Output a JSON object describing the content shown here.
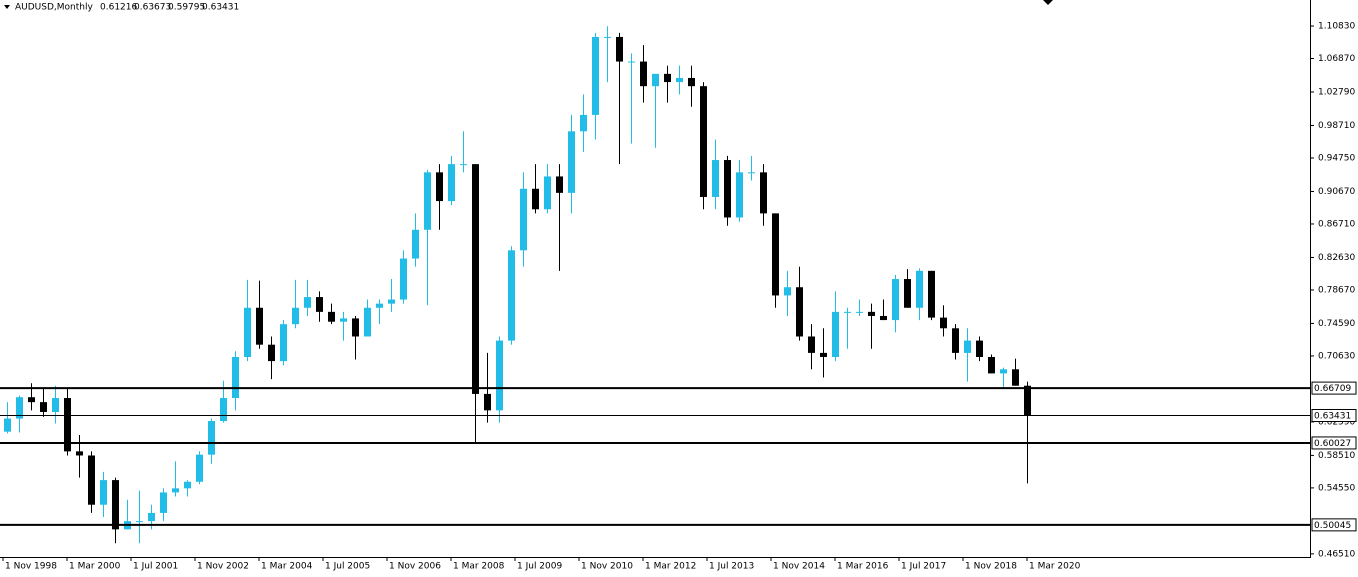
{
  "chart_data": {
    "type": "candlestick",
    "title": "AUDUSD,Monthly",
    "header_values": [
      0.61216,
      0.63673,
      0.59795
    ],
    "up_color": "#22bde6",
    "down_color": "#000000",
    "ylim": [
      0.4613,
      1.14
    ],
    "yticks": [
      {
        "value": 1.1083,
        "label": "1.10830"
      },
      {
        "value": 1.0687,
        "label": "1.06870"
      },
      {
        "value": 1.0279,
        "label": "1.02790"
      },
      {
        "value": 0.9871,
        "label": "0.98710"
      },
      {
        "value": 0.9475,
        "label": "0.94750"
      },
      {
        "value": 0.9067,
        "label": "0.90670"
      },
      {
        "value": 0.8671,
        "label": "0.86710"
      },
      {
        "value": 0.8263,
        "label": "0.82630"
      },
      {
        "value": 0.7867,
        "label": "0.78670"
      },
      {
        "value": 0.7459,
        "label": "0.74590"
      },
      {
        "value": 0.7063,
        "label": "0.70630"
      },
      {
        "value": 0.6259,
        "label": "0.62590"
      },
      {
        "value": 0.5851,
        "label": "0.58510"
      },
      {
        "value": 0.5455,
        "label": "0.54550"
      },
      {
        "value": 0.4651,
        "label": "0.46510"
      }
    ],
    "levels": [
      0.66709,
      0.60027,
      0.50045
    ],
    "x_labels": [
      "1 Nov 1998",
      "1 Mar 2000",
      "1 Jul 2001",
      "1 Nov 2002",
      "1 Mar 2004",
      "1 Jul 2005",
      "1 Nov 2006",
      "1 Mar 2008",
      "1 Jul 2009",
      "1 Nov 2010",
      "1 Mar 2012",
      "1 Jul 2013",
      "1 Nov 2014",
      "1 Mar 2016",
      "1 Jul 2017",
      "1 Nov 2018",
      "1 Mar 2020"
    ],
    "open": [
      0.614,
      0.63,
      0.656,
      0.65,
      0.638,
      0.655,
      0.59,
      0.585,
      0.525,
      0.555,
      0.495,
      0.505,
      0.505,
      0.515,
      0.54,
      0.545,
      0.553,
      0.586,
      0.627,
      0.655,
      0.705,
      0.765,
      0.72,
      0.7,
      0.745,
      0.765,
      0.778,
      0.76,
      0.748,
      0.752,
      0.73,
      0.765,
      0.77,
      0.775,
      0.825,
      0.86,
      0.93,
      0.895,
      0.94,
      0.94,
      0.66,
      0.64,
      0.725,
      0.835,
      0.91,
      0.885,
      0.925,
      0.905,
      0.98,
      1.0,
      1.095,
      1.095,
      1.065,
      1.065,
      1.035,
      1.05,
      1.04,
      1.045,
      1.035,
      0.9,
      0.945,
      0.875,
      0.93,
      0.93,
      0.88,
      0.78,
      0.79,
      0.73,
      0.71,
      0.705,
      0.76,
      0.76,
      0.76,
      0.755,
      0.75,
      0.8,
      0.765,
      0.81,
      0.753,
      0.74,
      0.71,
      0.725,
      0.705,
      0.685,
      0.69,
      0.67
    ],
    "high": [
      0.65,
      0.658,
      0.673,
      0.666,
      0.67,
      0.668,
      0.61,
      0.59,
      0.565,
      0.558,
      0.531,
      0.542,
      0.525,
      0.545,
      0.578,
      0.555,
      0.59,
      0.63,
      0.676,
      0.712,
      0.799,
      0.798,
      0.73,
      0.75,
      0.799,
      0.799,
      0.785,
      0.77,
      0.76,
      0.755,
      0.775,
      0.775,
      0.8,
      0.835,
      0.88,
      0.933,
      0.94,
      0.95,
      0.98,
      0.94,
      0.71,
      0.73,
      0.84,
      0.93,
      0.94,
      0.94,
      0.94,
      1.0,
      1.025,
      1.1,
      1.108,
      1.1,
      1.075,
      1.085,
      1.05,
      1.06,
      1.06,
      1.06,
      1.04,
      0.97,
      0.95,
      0.945,
      0.95,
      0.94,
      0.88,
      0.81,
      0.815,
      0.745,
      0.74,
      0.785,
      0.765,
      0.775,
      0.77,
      0.775,
      0.805,
      0.812,
      0.813,
      0.81,
      0.768,
      0.745,
      0.74,
      0.73,
      0.708,
      0.692,
      0.703,
      0.675
    ],
    "low": [
      0.612,
      0.613,
      0.64,
      0.632,
      0.624,
      0.585,
      0.558,
      0.515,
      0.51,
      0.478,
      0.495,
      0.478,
      0.495,
      0.505,
      0.535,
      0.535,
      0.55,
      0.575,
      0.625,
      0.64,
      0.7,
      0.715,
      0.678,
      0.695,
      0.74,
      0.755,
      0.748,
      0.745,
      0.725,
      0.702,
      0.73,
      0.745,
      0.76,
      0.77,
      0.815,
      0.768,
      0.86,
      0.89,
      0.93,
      0.6,
      0.625,
      0.625,
      0.72,
      0.815,
      0.88,
      0.88,
      0.81,
      0.88,
      0.955,
      0.97,
      1.04,
      0.94,
      0.965,
      1.015,
      0.96,
      1.015,
      1.025,
      1.01,
      0.885,
      0.885,
      0.865,
      0.87,
      0.92,
      0.865,
      0.765,
      0.755,
      0.725,
      0.69,
      0.68,
      0.7,
      0.715,
      0.755,
      0.715,
      0.75,
      0.735,
      0.765,
      0.75,
      0.75,
      0.73,
      0.702,
      0.675,
      0.7,
      0.685,
      0.667,
      0.67,
      0.551
    ],
    "close": [
      0.63,
      0.656,
      0.65,
      0.638,
      0.655,
      0.59,
      0.585,
      0.525,
      0.555,
      0.495,
      0.505,
      0.505,
      0.515,
      0.54,
      0.545,
      0.553,
      0.586,
      0.627,
      0.655,
      0.705,
      0.765,
      0.72,
      0.7,
      0.745,
      0.765,
      0.778,
      0.76,
      0.748,
      0.752,
      0.73,
      0.765,
      0.77,
      0.775,
      0.825,
      0.86,
      0.93,
      0.895,
      0.94,
      0.94,
      0.66,
      0.64,
      0.725,
      0.835,
      0.91,
      0.885,
      0.925,
      0.905,
      0.98,
      1.0,
      1.095,
      1.095,
      1.065,
      1.065,
      1.035,
      1.05,
      1.04,
      1.045,
      1.035,
      0.9,
      0.945,
      0.875,
      0.93,
      0.93,
      0.88,
      0.78,
      0.79,
      0.73,
      0.71,
      0.705,
      0.76,
      0.76,
      0.76,
      0.755,
      0.75,
      0.8,
      0.765,
      0.81,
      0.753,
      0.74,
      0.71,
      0.725,
      0.705,
      0.685,
      0.69,
      0.67,
      0.63431
    ]
  }
}
